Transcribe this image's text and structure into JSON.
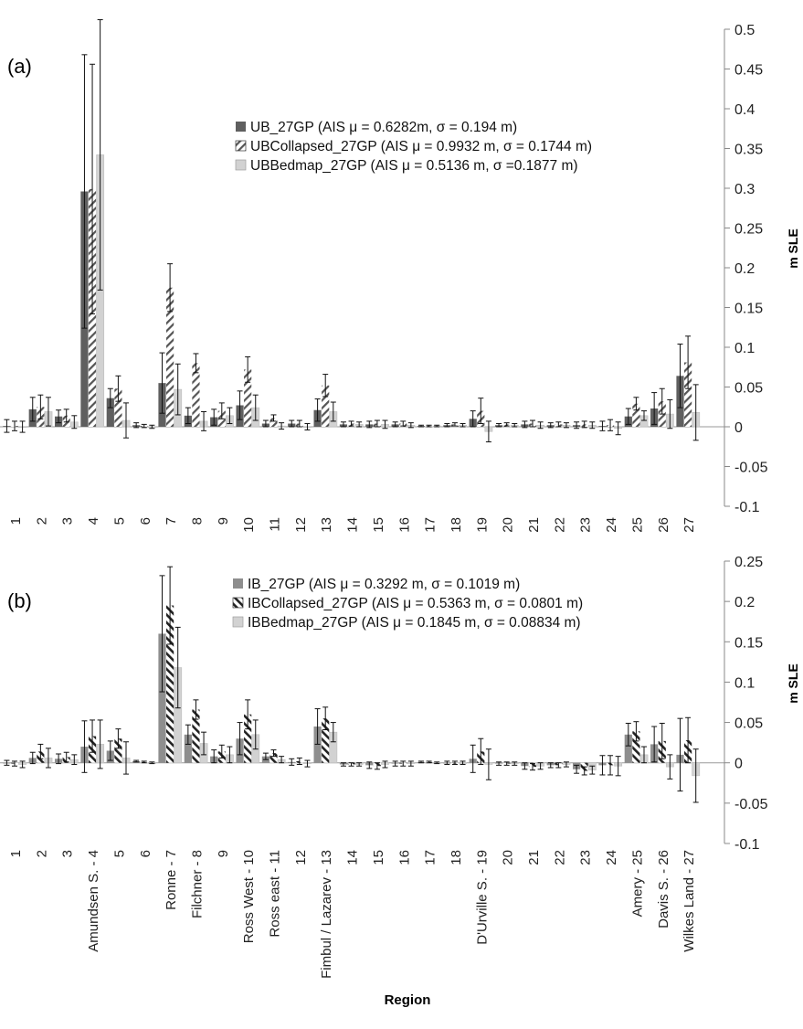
{
  "xlabel": "Region",
  "colors": {
    "dark": "#5f5f5f",
    "light": "#d2d2d2",
    "err": "#111111",
    "axis": "#888888"
  },
  "chart_data": [
    {
      "type": "bar",
      "panel_label": "(a)",
      "ylabel": "m SLE",
      "ylim": [
        -0.1,
        0.5
      ],
      "yticks": [
        "-0.1",
        "-0.05",
        "0",
        "0.05",
        "0.1",
        "0.15",
        "0.2",
        "0.25",
        "0.3",
        "0.35",
        "0.4",
        "0.45",
        "0.5"
      ],
      "categories": [
        "1",
        "2",
        "3",
        "4",
        "5",
        "6",
        "7",
        "8",
        "9",
        "10",
        "11",
        "12",
        "13",
        "14",
        "15",
        "16",
        "17",
        "18",
        "19",
        "20",
        "21",
        "22",
        "23",
        "24",
        "25",
        "26",
        "27"
      ],
      "series": [
        {
          "name": "UB_27GP (AIS μ = 0.6282m, σ = 0.194 m)",
          "style": "dark",
          "values": [
            0.001,
            0.022,
            0.013,
            0.296,
            0.036,
            0.002,
            0.055,
            0.014,
            0.012,
            0.027,
            0.004,
            0.004,
            0.021,
            0.003,
            0.003,
            0.003,
            0.001,
            0.002,
            0.01,
            0.002,
            0.003,
            0.002,
            0.002,
            0.001,
            0.013,
            0.023,
            0.064
          ],
          "errors": [
            0.008,
            0.015,
            0.008,
            0.172,
            0.012,
            0.003,
            0.038,
            0.01,
            0.01,
            0.018,
            0.004,
            0.004,
            0.014,
            0.003,
            0.004,
            0.003,
            0.001,
            0.002,
            0.01,
            0.002,
            0.004,
            0.003,
            0.004,
            0.006,
            0.01,
            0.02,
            0.04
          ]
        },
        {
          "name": "UBCollapsed_27GP (AIS μ = 0.9932 m, σ = 0.1744 m)",
          "style": "hatch",
          "values": [
            0.001,
            0.025,
            0.014,
            0.299,
            0.048,
            0.001,
            0.175,
            0.08,
            0.02,
            0.072,
            0.011,
            0.004,
            0.052,
            0.004,
            0.004,
            0.004,
            0.001,
            0.003,
            0.02,
            0.003,
            0.004,
            0.003,
            0.003,
            0.002,
            0.029,
            0.032,
            0.081
          ],
          "errors": [
            0.006,
            0.015,
            0.008,
            0.157,
            0.016,
            0.002,
            0.03,
            0.012,
            0.01,
            0.016,
            0.004,
            0.004,
            0.014,
            0.003,
            0.004,
            0.003,
            0.001,
            0.002,
            0.016,
            0.002,
            0.004,
            0.003,
            0.004,
            0.007,
            0.008,
            0.016,
            0.033
          ]
        },
        {
          "name": "UBBedmap_27GP (AIS μ = 0.5136 m, σ =0.1877 m)",
          "style": "light",
          "values": [
            0.0,
            0.019,
            0.006,
            0.342,
            0.008,
            0.0,
            0.047,
            0.007,
            0.014,
            0.024,
            0.001,
            0.0,
            0.019,
            0.003,
            0.003,
            0.002,
            0.001,
            0.002,
            -0.006,
            0.002,
            0.002,
            0.002,
            0.002,
            -0.002,
            0.014,
            0.016,
            0.018
          ],
          "errors": [
            0.007,
            0.018,
            0.008,
            0.17,
            0.022,
            0.002,
            0.032,
            0.012,
            0.01,
            0.016,
            0.004,
            0.004,
            0.012,
            0.003,
            0.005,
            0.003,
            0.001,
            0.002,
            0.013,
            0.002,
            0.004,
            0.003,
            0.004,
            0.008,
            0.006,
            0.018,
            0.035
          ]
        }
      ]
    },
    {
      "type": "bar",
      "panel_label": "(b)",
      "ylabel": "m SLE",
      "ylim": [
        -0.1,
        0.25
      ],
      "yticks": [
        "-0.1",
        "-0.05",
        "0",
        "0.05",
        "0.1",
        "0.15",
        "0.2",
        "0.25"
      ],
      "categories": [
        "1",
        "2",
        "3",
        "Amundsen S. - 4",
        "5",
        "6",
        "Ronne - 7",
        "Filchner - 8",
        "9",
        "Ross  West - 10",
        "Ross east - 11",
        "12",
        "Fimbul / Lazarev  - 13",
        "14",
        "15",
        "16",
        "17",
        "18",
        "D'Urville S. - 19",
        "20",
        "21",
        "22",
        "23",
        "24",
        "Amery - 25",
        "Davis S. - 26",
        "Wilkes Land - 27"
      ],
      "series": [
        {
          "name": "IB_27GP (AIS μ = 0.3292 m, σ = 0.1019 m)",
          "style": "mid",
          "values": [
            0.0,
            0.006,
            0.005,
            0.02,
            0.015,
            0.002,
            0.16,
            0.035,
            0.008,
            0.03,
            0.008,
            0.001,
            0.045,
            -0.002,
            -0.003,
            -0.001,
            0.001,
            0.0,
            0.005,
            -0.001,
            -0.004,
            -0.003,
            -0.008,
            -0.003,
            0.035,
            0.023,
            0.01
          ],
          "errors": [
            0.003,
            0.007,
            0.006,
            0.032,
            0.012,
            0.001,
            0.072,
            0.012,
            0.008,
            0.02,
            0.004,
            0.004,
            0.022,
            0.002,
            0.004,
            0.003,
            0.001,
            0.002,
            0.017,
            0.002,
            0.004,
            0.003,
            0.005,
            0.012,
            0.014,
            0.022,
            0.045
          ]
        },
        {
          "name": "IBCollapsed_27GP (AIS μ = 0.5363 m, σ = 0.0801 m)",
          "style": "hatch",
          "values": [
            -0.001,
            0.014,
            0.007,
            0.033,
            0.03,
            0.001,
            0.195,
            0.066,
            0.014,
            0.06,
            0.012,
            0.002,
            0.055,
            -0.002,
            -0.004,
            -0.001,
            0.001,
            0.0,
            0.014,
            -0.001,
            -0.005,
            -0.003,
            -0.01,
            -0.003,
            0.039,
            0.027,
            0.028
          ],
          "errors": [
            0.003,
            0.009,
            0.006,
            0.02,
            0.012,
            0.001,
            0.048,
            0.012,
            0.008,
            0.018,
            0.004,
            0.004,
            0.014,
            0.002,
            0.004,
            0.003,
            0.001,
            0.002,
            0.016,
            0.002,
            0.004,
            0.003,
            0.005,
            0.012,
            0.012,
            0.022,
            0.028
          ]
        },
        {
          "name": "IBBedmap_27GP (AIS μ = 0.1845 m, σ = 0.08834 m)",
          "style": "light",
          "values": [
            -0.002,
            0.006,
            0.004,
            0.023,
            0.006,
            0.0,
            0.118,
            0.024,
            0.01,
            0.035,
            0.004,
            -0.001,
            0.038,
            -0.002,
            -0.002,
            -0.001,
            0.0,
            0.0,
            -0.002,
            -0.001,
            -0.004,
            -0.002,
            -0.009,
            -0.004,
            0.01,
            -0.005,
            -0.016
          ],
          "errors": [
            0.004,
            0.012,
            0.006,
            0.03,
            0.02,
            0.001,
            0.05,
            0.014,
            0.01,
            0.018,
            0.004,
            0.004,
            0.012,
            0.002,
            0.004,
            0.003,
            0.001,
            0.002,
            0.019,
            0.002,
            0.004,
            0.003,
            0.005,
            0.012,
            0.01,
            0.015,
            0.033
          ]
        }
      ]
    }
  ]
}
